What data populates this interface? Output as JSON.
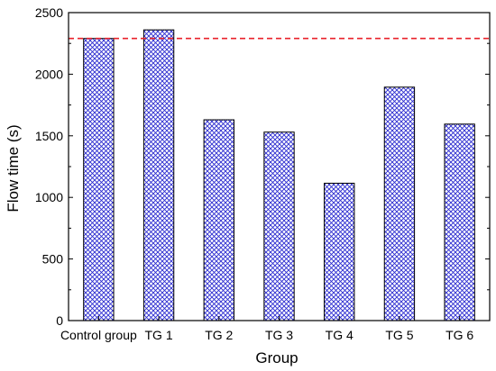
{
  "chart_data": {
    "type": "bar",
    "title": "",
    "xlabel": "Group",
    "ylabel": "Flow time (s)",
    "categories": [
      "Control group",
      "TG 1",
      "TG 2",
      "TG 3",
      "TG 4",
      "TG 5",
      "TG 6"
    ],
    "values": [
      2290,
      2360,
      1630,
      1530,
      1115,
      1895,
      1595
    ],
    "ylim": [
      0,
      2500
    ],
    "yticks": [
      "0",
      "500",
      "1000",
      "1500",
      "2000",
      "2500"
    ],
    "reference_line": {
      "value": 2290,
      "color": "#e8222a",
      "style": "dashed"
    },
    "bar_fill": "crosshatch",
    "bar_color": "#2a2ad0",
    "grid": false,
    "legend": "none"
  }
}
